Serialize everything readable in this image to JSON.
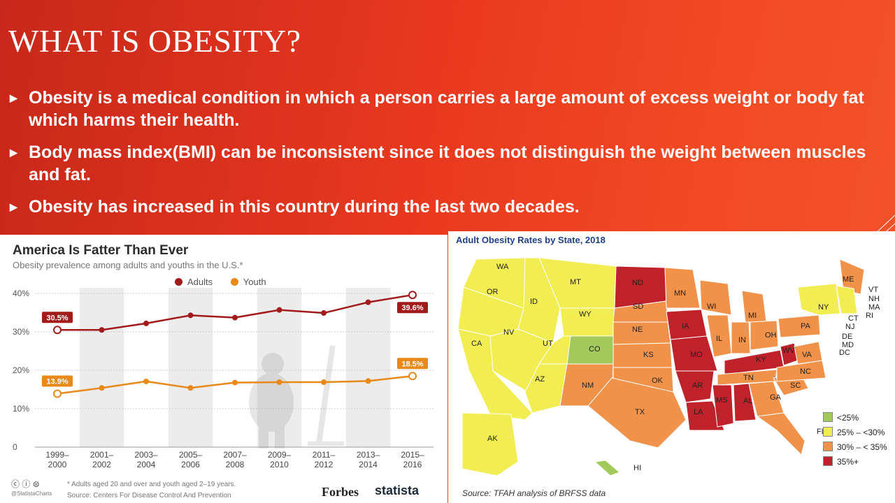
{
  "slide": {
    "title": "WHAT IS OBESITY?",
    "bullets": [
      "Obesity is a medical condition in which a person carries a large amount of excess weight or body fat which harms their health.",
      "Body mass index(BMI) can be inconsistent since it does not distinguish the weight between muscles and fat.",
      "Obesity has increased in this country during the last two decades."
    ],
    "accent_color": "#e8381f"
  },
  "chart_data": {
    "type": "line",
    "title": "America Is Fatter Than Ever",
    "subtitle": "Obesity prevalence among adults and youths in the U.S.*",
    "categories": [
      "1999–2000",
      "2001–2002",
      "2003–2004",
      "2005–2006",
      "2007–2008",
      "2009–2010",
      "2011–2012",
      "2013–2014",
      "2015–2016"
    ],
    "series": [
      {
        "name": "Adults",
        "color": "#a31a1a",
        "values": [
          30.5,
          30.5,
          32.2,
          34.3,
          33.7,
          35.7,
          34.9,
          37.7,
          39.6
        ]
      },
      {
        "name": "Youth",
        "color": "#e8891a",
        "values": [
          13.9,
          15.4,
          17.1,
          15.4,
          16.8,
          16.9,
          16.9,
          17.2,
          18.5
        ]
      }
    ],
    "data_labels": {
      "adults_first": "30.5%",
      "adults_last": "39.6%",
      "youth_first": "13.9%",
      "youth_last": "18.5%"
    },
    "y_ticks": [
      "0",
      "10%",
      "20%",
      "30%",
      "40%"
    ],
    "ylim": [
      0,
      40
    ],
    "legend_position": "top",
    "footnote": "* Adults aged 20 and over and youth aged 2–19 years.",
    "source": "Source: Centers For Disease Control And Prevention",
    "handle": "@StatistaCharts",
    "brand1": "Forbes",
    "brand2": "statista"
  },
  "map": {
    "title": "Adult Obesity Rates by State, 2018",
    "source": "Source: TFAH analysis of BRFSS data",
    "legend": [
      {
        "label": "<25%",
        "color": "#a3c95a"
      },
      {
        "label": "25% – <30%",
        "color": "#f2ed52"
      },
      {
        "label": "30% – < 35%",
        "color": "#f1924a"
      },
      {
        "label": "35%+",
        "color": "#c0222b"
      }
    ],
    "state_labels": [
      "WA",
      "OR",
      "CA",
      "ID",
      "NV",
      "MT",
      "WY",
      "UT",
      "AZ",
      "CO",
      "NM",
      "ND",
      "SD",
      "NE",
      "KS",
      "OK",
      "TX",
      "MN",
      "IA",
      "MO",
      "AR",
      "LA",
      "WI",
      "IL",
      "MI",
      "IN",
      "KY",
      "TN",
      "MS",
      "AL",
      "OH",
      "WV",
      "VA",
      "PA",
      "NY",
      "NC",
      "SC",
      "GA",
      "FL",
      "ME",
      "VT",
      "NH",
      "MA",
      "RI",
      "CT",
      "NJ",
      "DE",
      "MD",
      "DC",
      "AK",
      "HI"
    ]
  }
}
